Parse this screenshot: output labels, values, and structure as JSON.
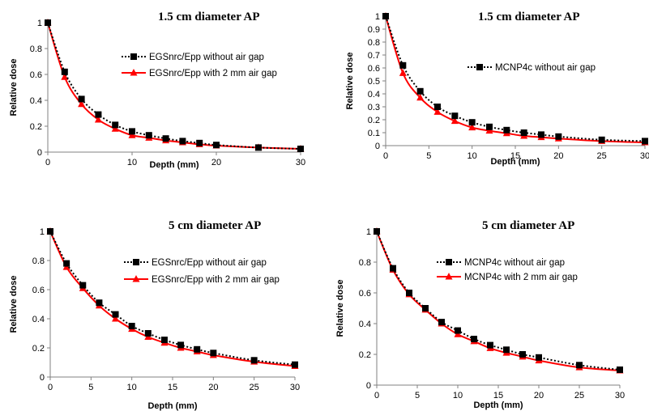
{
  "chart_data": [
    {
      "type": "line",
      "title": "1.5 cm diameter AP",
      "xlabel": "Depth (mm)",
      "ylabel": "Relative dose",
      "xlim": [
        0,
        30
      ],
      "ylim": [
        0,
        1
      ],
      "xticks": [
        0,
        10,
        20,
        30
      ],
      "yticks": [
        0,
        0.2,
        0.4,
        0.6,
        0.8,
        1
      ],
      "legend_position": "right",
      "series": [
        {
          "name": "EGSnrc/Epp without air gap",
          "style": "dotted-square",
          "color": "#000000",
          "x": [
            0,
            2,
            4,
            6,
            8,
            10,
            12,
            14,
            16,
            18,
            20,
            25,
            30
          ],
          "y": [
            1.0,
            0.62,
            0.41,
            0.29,
            0.21,
            0.16,
            0.13,
            0.105,
            0.085,
            0.07,
            0.055,
            0.035,
            0.025
          ]
        },
        {
          "name": "EGSnrc/Epp with 2 mm air gap",
          "style": "solid-triangle",
          "color": "#ff0000",
          "x": [
            0,
            2,
            4,
            6,
            8,
            10,
            12,
            14,
            16,
            18,
            20,
            25,
            30
          ],
          "y": [
            1.0,
            0.58,
            0.37,
            0.25,
            0.18,
            0.13,
            0.11,
            0.09,
            0.075,
            0.06,
            0.05,
            0.035,
            0.025
          ]
        }
      ]
    },
    {
      "type": "line",
      "title": "1.5 cm diameter AP",
      "xlabel": "Depth (mm)",
      "ylabel": "Relative dose",
      "xlim": [
        0,
        30
      ],
      "ylim": [
        0,
        1
      ],
      "xticks": [
        0,
        5,
        10,
        15,
        20,
        25,
        30
      ],
      "yticks": [
        0,
        0.1,
        0.2,
        0.3,
        0.4,
        0.5,
        0.6,
        0.7,
        0.8,
        0.9,
        1
      ],
      "legend_position": "right",
      "series": [
        {
          "name": "MCNP4c without air gap",
          "style": "dotted-square",
          "color": "#000000",
          "x": [
            0,
            2,
            4,
            6,
            8,
            10,
            12,
            14,
            16,
            18,
            20,
            25,
            30
          ],
          "y": [
            1.0,
            0.62,
            0.42,
            0.3,
            0.23,
            0.18,
            0.145,
            0.12,
            0.1,
            0.085,
            0.07,
            0.045,
            0.035
          ]
        },
        {
          "name": "",
          "style": "solid-triangle",
          "color": "#ff0000",
          "x": [
            0,
            2,
            4,
            6,
            8,
            10,
            12,
            14,
            16,
            18,
            20,
            25,
            30
          ],
          "y": [
            1.0,
            0.56,
            0.37,
            0.26,
            0.19,
            0.14,
            0.115,
            0.095,
            0.075,
            0.065,
            0.055,
            0.035,
            0.025
          ]
        }
      ]
    },
    {
      "type": "line",
      "title": "5 cm diameter AP",
      "xlabel": "Depth (mm)",
      "ylabel": "Relative dose",
      "xlim": [
        0,
        30
      ],
      "ylim": [
        0,
        1
      ],
      "xticks": [
        0,
        5,
        10,
        15,
        20,
        25,
        30
      ],
      "yticks": [
        0,
        0.2,
        0.4,
        0.6,
        0.8,
        1
      ],
      "legend_position": "right",
      "series": [
        {
          "name": "EGSnrc/Epp without air gap",
          "style": "dotted-square",
          "color": "#000000",
          "x": [
            0,
            2,
            4,
            6,
            8,
            10,
            12,
            14,
            16,
            18,
            20,
            25,
            30
          ],
          "y": [
            1.0,
            0.78,
            0.63,
            0.51,
            0.43,
            0.35,
            0.3,
            0.255,
            0.22,
            0.19,
            0.165,
            0.115,
            0.085
          ]
        },
        {
          "name": "EGSnrc/Epp with 2 mm air gap",
          "style": "solid-triangle",
          "color": "#ff0000",
          "x": [
            0,
            2,
            4,
            6,
            8,
            10,
            12,
            14,
            16,
            18,
            20,
            25,
            30
          ],
          "y": [
            1.0,
            0.755,
            0.61,
            0.49,
            0.4,
            0.33,
            0.275,
            0.235,
            0.2,
            0.175,
            0.15,
            0.105,
            0.075
          ]
        }
      ]
    },
    {
      "type": "line",
      "title": "5 cm diameter AP",
      "xlabel": "Depth (mm)",
      "ylabel": "Relative dose",
      "xlim": [
        0,
        30
      ],
      "ylim": [
        0,
        1
      ],
      "xticks": [
        0,
        5,
        10,
        15,
        20,
        25,
        30
      ],
      "yticks": [
        0,
        0.2,
        0.4,
        0.6,
        0.8,
        1
      ],
      "legend_position": "right",
      "series": [
        {
          "name": "MCNP4c without air gap",
          "style": "dotted-square",
          "color": "#000000",
          "x": [
            0,
            2,
            4,
            6,
            8,
            10,
            12,
            14,
            16,
            18,
            20,
            25,
            30
          ],
          "y": [
            1.0,
            0.76,
            0.6,
            0.5,
            0.41,
            0.355,
            0.3,
            0.26,
            0.23,
            0.2,
            0.18,
            0.13,
            0.1
          ]
        },
        {
          "name": "MCNP4c with 2 mm air gap",
          "style": "solid-triangle",
          "color": "#ff0000",
          "x": [
            0,
            2,
            4,
            6,
            8,
            10,
            12,
            14,
            16,
            18,
            20,
            25,
            30
          ],
          "y": [
            1.0,
            0.75,
            0.59,
            0.49,
            0.4,
            0.33,
            0.285,
            0.24,
            0.21,
            0.185,
            0.16,
            0.115,
            0.095
          ]
        }
      ]
    }
  ]
}
